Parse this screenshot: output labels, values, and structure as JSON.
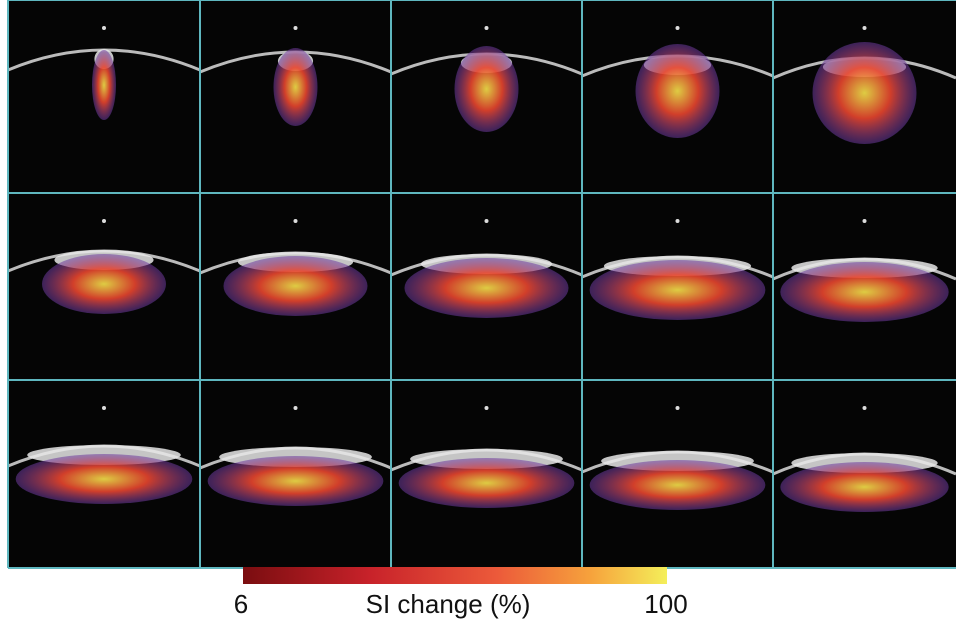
{
  "colorbar": {
    "min": 6,
    "max": 100,
    "label": "SI change (%)"
  }
}
